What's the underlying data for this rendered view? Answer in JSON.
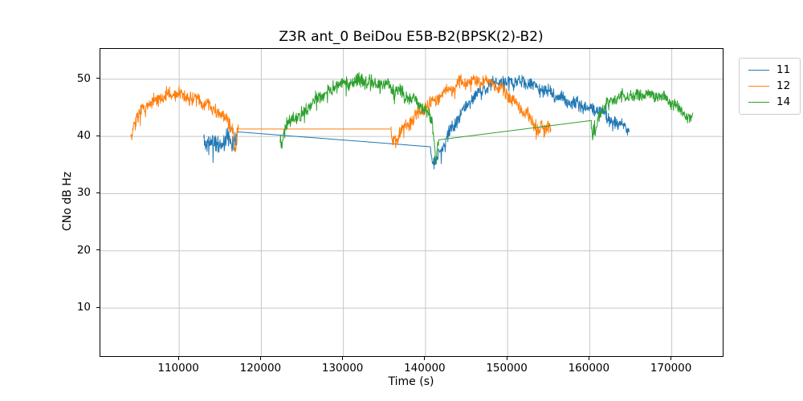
{
  "chart_data": {
    "type": "line",
    "title": "Z3R ant_0 BeiDou E5B-B2(BPSK(2)-B2)",
    "xlabel": "Time (s)",
    "ylabel": "CNo dB Hz",
    "xlim": [
      100400,
      176200
    ],
    "ylim": [
      1.6,
      55.3
    ],
    "xticks": [
      110000,
      120000,
      130000,
      140000,
      150000,
      160000,
      170000
    ],
    "yticks": [
      10,
      20,
      30,
      40,
      50
    ],
    "grid": true,
    "grid_color": "#c6c6c6",
    "spine_color": "#000000",
    "legend_position": "outside-top-right",
    "noise_seed": 11,
    "series": [
      {
        "name": "11",
        "color": "#1f77b4",
        "segments": [
          {
            "type": "noisy",
            "amp": 2.0,
            "keypoints": [
              [
                113000,
                39.8
              ],
              [
                113500,
                39.0
              ],
              [
                114200,
                38.5
              ],
              [
                115000,
                38.9
              ],
              [
                115800,
                39.2
              ],
              [
                116400,
                39.4
              ],
              [
                116900,
                39.9
              ],
              [
                117100,
                40.8
              ]
            ]
          },
          {
            "type": "line",
            "keypoints": [
              [
                117100,
                40.8
              ],
              [
                140600,
                38.2
              ]
            ]
          },
          {
            "type": "noisy",
            "amp": 1.3,
            "keypoints": [
              [
                140600,
                37.6
              ],
              [
                140800,
                36.2
              ],
              [
                141100,
                35.6
              ],
              [
                141400,
                36.4
              ],
              [
                142000,
                38.2
              ],
              [
                143000,
                40.9
              ],
              [
                144000,
                43.4
              ],
              [
                145000,
                45.4
              ],
              [
                146000,
                47.1
              ],
              [
                147000,
                48.3
              ],
              [
                148000,
                49.0
              ],
              [
                149000,
                49.4
              ],
              [
                150000,
                49.6
              ],
              [
                151000,
                49.6
              ],
              [
                152000,
                49.5
              ],
              [
                153000,
                49.0
              ],
              [
                154000,
                48.3
              ],
              [
                155000,
                47.7
              ],
              [
                156000,
                47.1
              ],
              [
                157000,
                46.4
              ],
              [
                158000,
                45.9
              ],
              [
                159000,
                45.4
              ],
              [
                160000,
                45.0
              ],
              [
                161000,
                44.6
              ],
              [
                162000,
                43.7
              ],
              [
                162700,
                42.9
              ],
              [
                163200,
                42.0
              ],
              [
                163600,
                41.7
              ],
              [
                164000,
                42.3
              ],
              [
                164300,
                41.9
              ],
              [
                164700,
                41.1
              ],
              [
                164800,
                40.8
              ]
            ]
          }
        ]
      },
      {
        "name": "12",
        "color": "#ff7f0e",
        "segments": [
          {
            "type": "noisy",
            "amp": 1.5,
            "keypoints": [
              [
                104100,
                39.6
              ],
              [
                104350,
                41.6
              ],
              [
                104800,
                43.1
              ],
              [
                105300,
                44.1
              ],
              [
                106000,
                45.2
              ],
              [
                107000,
                46.2
              ],
              [
                108000,
                46.9
              ],
              [
                109000,
                47.3
              ],
              [
                110000,
                47.3
              ],
              [
                111000,
                47.0
              ],
              [
                112000,
                46.6
              ],
              [
                113000,
                46.0
              ],
              [
                114000,
                45.2
              ],
              [
                114800,
                44.4
              ],
              [
                115500,
                43.5
              ],
              [
                116100,
                42.7
              ],
              [
                116500,
                41.4
              ],
              [
                116700,
                38.6
              ],
              [
                116850,
                36.4
              ],
              [
                117000,
                39.6
              ],
              [
                117200,
                41.3
              ]
            ]
          },
          {
            "type": "line",
            "keypoints": [
              [
                117200,
                41.3
              ],
              [
                135800,
                41.3
              ]
            ]
          },
          {
            "type": "noisy",
            "amp": 1.4,
            "keypoints": [
              [
                135800,
                40.4
              ],
              [
                135950,
                38.6
              ],
              [
                136150,
                39.9
              ],
              [
                136400,
                38.9
              ],
              [
                136700,
                40.3
              ],
              [
                137000,
                40.9
              ],
              [
                137500,
                41.4
              ],
              [
                138000,
                42.4
              ],
              [
                139000,
                43.9
              ],
              [
                140000,
                45.3
              ],
              [
                141000,
                46.4
              ],
              [
                142000,
                47.4
              ],
              [
                143000,
                48.4
              ],
              [
                144000,
                49.1
              ],
              [
                145000,
                49.5
              ],
              [
                146000,
                49.6
              ],
              [
                147000,
                49.7
              ],
              [
                147800,
                49.5
              ],
              [
                148500,
                49.0
              ],
              [
                149200,
                48.3
              ],
              [
                150000,
                47.3
              ],
              [
                150800,
                46.2
              ],
              [
                151600,
                45.0
              ],
              [
                152400,
                43.8
              ],
              [
                153000,
                42.9
              ],
              [
                153500,
                41.9
              ],
              [
                153900,
                40.7
              ],
              [
                154200,
                41.9
              ],
              [
                154500,
                40.3
              ],
              [
                154800,
                41.6
              ],
              [
                155100,
                42.1
              ],
              [
                155300,
                41.9
              ]
            ]
          }
        ]
      },
      {
        "name": "14",
        "color": "#2ca02c",
        "segments": [
          {
            "type": "noisy",
            "amp": 1.4,
            "keypoints": [
              [
                122300,
                40.2
              ],
              [
                122500,
                39.0
              ],
              [
                122800,
                40.6
              ],
              [
                123200,
                42.1
              ],
              [
                123800,
                43.1
              ],
              [
                124300,
                43.7
              ],
              [
                124700,
                43.0
              ],
              [
                125300,
                44.7
              ],
              [
                126000,
                45.7
              ],
              [
                127000,
                46.7
              ],
              [
                128000,
                47.7
              ],
              [
                129000,
                48.7
              ],
              [
                130000,
                49.3
              ],
              [
                131000,
                49.7
              ],
              [
                132000,
                49.8
              ],
              [
                133000,
                49.6
              ],
              [
                134000,
                49.2
              ],
              [
                135000,
                48.8
              ],
              [
                136000,
                48.3
              ],
              [
                137000,
                47.7
              ],
              [
                138000,
                46.9
              ],
              [
                139000,
                45.9
              ],
              [
                139800,
                44.9
              ],
              [
                140400,
                43.9
              ],
              [
                140800,
                42.6
              ],
              [
                141050,
                39.6
              ],
              [
                141250,
                35.9
              ],
              [
                141400,
                37.6
              ],
              [
                141600,
                39.4
              ]
            ]
          },
          {
            "type": "line",
            "keypoints": [
              [
                141600,
                39.4
              ],
              [
                160200,
                42.8
              ]
            ]
          },
          {
            "type": "noisy",
            "amp": 1.2,
            "keypoints": [
              [
                160200,
                42.1
              ],
              [
                160350,
                39.7
              ],
              [
                160550,
                41.9
              ],
              [
                160750,
                40.3
              ],
              [
                160950,
                42.9
              ],
              [
                161250,
                43.9
              ],
              [
                161650,
                44.7
              ],
              [
                162000,
                45.4
              ],
              [
                162500,
                46.1
              ],
              [
                163000,
                46.5
              ],
              [
                164000,
                47.0
              ],
              [
                165000,
                47.2
              ],
              [
                166000,
                47.3
              ],
              [
                167000,
                47.3
              ],
              [
                168000,
                47.1
              ],
              [
                168800,
                46.9
              ],
              [
                169500,
                46.4
              ],
              [
                170200,
                45.7
              ],
              [
                170800,
                44.9
              ],
              [
                171400,
                44.1
              ],
              [
                171900,
                43.4
              ],
              [
                172300,
                43.0
              ],
              [
                172600,
                43.4
              ]
            ]
          }
        ]
      }
    ]
  },
  "legend": {
    "entries": [
      {
        "label": "11",
        "color": "#1f77b4"
      },
      {
        "label": "12",
        "color": "#ff7f0e"
      },
      {
        "label": "14",
        "color": "#2ca02c"
      }
    ]
  }
}
